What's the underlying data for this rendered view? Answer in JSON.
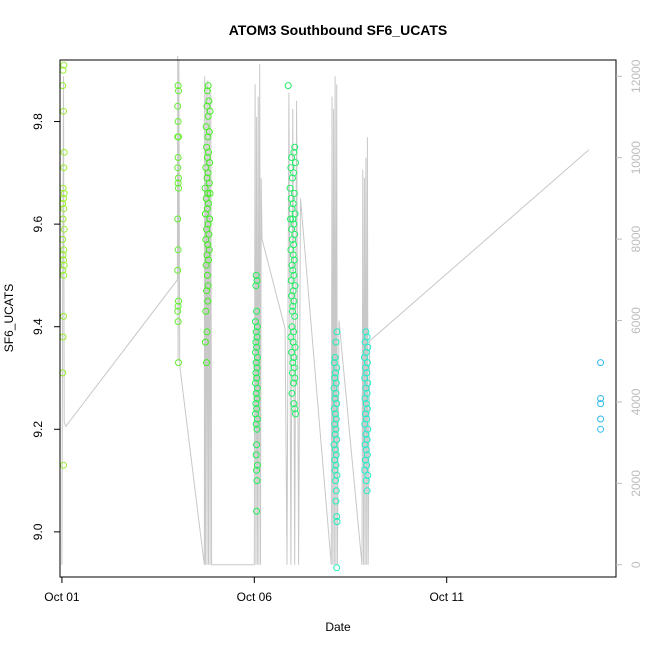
{
  "chart_data": {
    "type": "scatter",
    "title": "ATOM3 Southbound SF6_UCATS",
    "xlabel": "Date",
    "ylabel": "SF6_UCATS",
    "x_ticks": [
      "Oct 01",
      "Oct 06",
      "Oct 11"
    ],
    "x_tick_days": [
      1,
      6,
      11
    ],
    "y_ticks": [
      9.0,
      9.2,
      9.4,
      9.6,
      9.8
    ],
    "y2_ticks": [
      0,
      2000,
      4000,
      6000,
      8000,
      10000,
      12000
    ],
    "xlim": [
      0.95,
      15.4
    ],
    "ylim": [
      8.912,
      9.92
    ],
    "y2lim": [
      -300,
      12400
    ],
    "grid": false,
    "colors": {
      "axis": "#000000",
      "altitude_line": "#c8c8c8",
      "right_axis": "#bdbdbd"
    },
    "series": [
      {
        "color": "#99ee33",
        "points": [
          [
            1.05,
            9.91
          ],
          [
            1.03,
            9.9
          ],
          [
            1.02,
            9.87
          ],
          [
            1.04,
            9.82
          ],
          [
            1.06,
            9.74
          ],
          [
            1.05,
            9.71
          ],
          [
            1.03,
            9.67
          ],
          [
            1.06,
            9.66
          ],
          [
            1.04,
            9.65
          ],
          [
            1.02,
            9.64
          ],
          [
            1.05,
            9.63
          ],
          [
            1.03,
            9.61
          ],
          [
            1.06,
            9.59
          ],
          [
            1.02,
            9.57
          ],
          [
            1.05,
            9.55
          ],
          [
            1.03,
            9.54
          ],
          [
            1.04,
            9.53
          ],
          [
            1.06,
            9.52
          ],
          [
            1.02,
            9.51
          ],
          [
            1.05,
            9.5
          ],
          [
            1.04,
            9.42
          ],
          [
            1.03,
            9.38
          ],
          [
            1.02,
            9.31
          ],
          [
            1.04,
            9.13
          ]
        ]
      },
      {
        "color": "#66ee33",
        "points": [
          [
            4.02,
            9.87
          ],
          [
            4.03,
            9.86
          ],
          [
            4.01,
            9.83
          ],
          [
            4.02,
            9.8
          ],
          [
            4.01,
            9.77
          ],
          [
            4.03,
            9.77
          ],
          [
            4.02,
            9.73
          ],
          [
            4.01,
            9.71
          ],
          [
            4.03,
            9.69
          ],
          [
            4.02,
            9.68
          ],
          [
            4.03,
            9.67
          ],
          [
            4.01,
            9.61
          ],
          [
            4.02,
            9.55
          ],
          [
            4.01,
            9.51
          ],
          [
            4.03,
            9.45
          ],
          [
            4.02,
            9.44
          ],
          [
            4.01,
            9.43
          ],
          [
            4.02,
            9.41
          ],
          [
            4.03,
            9.33
          ]
        ]
      },
      {
        "color": "#44ee22",
        "points": [
          [
            4.8,
            9.87
          ],
          [
            4.78,
            9.86
          ],
          [
            4.82,
            9.84
          ],
          [
            4.77,
            9.83
          ],
          [
            4.85,
            9.82
          ],
          [
            4.8,
            9.81
          ],
          [
            4.75,
            9.79
          ],
          [
            4.83,
            9.78
          ],
          [
            4.79,
            9.77
          ],
          [
            4.76,
            9.75
          ],
          [
            4.81,
            9.74
          ],
          [
            4.78,
            9.73
          ],
          [
            4.84,
            9.72
          ],
          [
            4.74,
            9.71
          ],
          [
            4.8,
            9.7
          ],
          [
            4.77,
            9.69
          ],
          [
            4.83,
            9.68
          ],
          [
            4.72,
            9.67
          ],
          [
            4.79,
            9.66
          ],
          [
            4.85,
            9.66
          ],
          [
            4.75,
            9.65
          ],
          [
            4.81,
            9.64
          ],
          [
            4.78,
            9.63
          ],
          [
            4.73,
            9.62
          ],
          [
            4.84,
            9.61
          ],
          [
            4.8,
            9.6
          ],
          [
            4.76,
            9.59
          ],
          [
            4.82,
            9.58
          ],
          [
            4.74,
            9.57
          ],
          [
            4.79,
            9.56
          ],
          [
            4.83,
            9.55
          ],
          [
            4.77,
            9.54
          ],
          [
            4.81,
            9.53
          ],
          [
            4.75,
            9.52
          ],
          [
            4.78,
            9.5
          ],
          [
            4.8,
            9.48
          ],
          [
            4.76,
            9.47
          ],
          [
            4.79,
            9.45
          ],
          [
            4.74,
            9.43
          ],
          [
            4.77,
            9.39
          ],
          [
            4.73,
            9.37
          ],
          [
            4.76,
            9.33
          ]
        ]
      },
      {
        "color": "#22ee55",
        "points": [
          [
            6.05,
            9.5
          ],
          [
            6.07,
            9.49
          ],
          [
            6.04,
            9.48
          ],
          [
            6.06,
            9.43
          ],
          [
            6.03,
            9.41
          ],
          [
            6.08,
            9.4
          ],
          [
            6.05,
            9.39
          ],
          [
            6.07,
            9.38
          ],
          [
            6.04,
            9.37
          ],
          [
            6.06,
            9.36
          ],
          [
            6.03,
            9.35
          ],
          [
            6.08,
            9.34
          ],
          [
            6.05,
            9.33
          ],
          [
            6.07,
            9.32
          ],
          [
            6.04,
            9.31
          ],
          [
            6.06,
            9.3
          ],
          [
            6.03,
            9.29
          ],
          [
            6.08,
            9.28
          ],
          [
            6.05,
            9.27
          ],
          [
            6.07,
            9.26
          ],
          [
            6.04,
            9.25
          ],
          [
            6.06,
            9.24
          ],
          [
            6.03,
            9.23
          ],
          [
            6.08,
            9.22
          ],
          [
            6.05,
            9.21
          ],
          [
            6.07,
            9.2
          ],
          [
            6.06,
            9.17
          ],
          [
            6.05,
            9.15
          ],
          [
            6.08,
            9.13
          ],
          [
            6.06,
            9.12
          ],
          [
            6.07,
            9.1
          ],
          [
            6.06,
            9.04
          ]
        ]
      },
      {
        "color": "#22ee66",
        "points": [
          [
            6.88,
            9.87
          ],
          [
            7.05,
            9.75
          ],
          [
            7.03,
            9.74
          ],
          [
            6.97,
            9.73
          ],
          [
            7.07,
            9.72
          ],
          [
            6.95,
            9.71
          ],
          [
            7.02,
            9.7
          ],
          [
            6.99,
            9.69
          ],
          [
            6.93,
            9.67
          ],
          [
            7.04,
            9.66
          ],
          [
            6.96,
            9.65
          ],
          [
            7.01,
            9.64
          ],
          [
            6.98,
            9.63
          ],
          [
            7.06,
            9.62
          ],
          [
            6.94,
            9.61
          ],
          [
            7.0,
            9.61
          ],
          [
            7.03,
            9.6
          ],
          [
            6.97,
            9.59
          ],
          [
            7.05,
            9.58
          ],
          [
            6.99,
            9.57
          ],
          [
            7.02,
            9.56
          ],
          [
            6.95,
            9.55
          ],
          [
            7.01,
            9.54
          ],
          [
            7.04,
            9.53
          ],
          [
            6.98,
            9.52
          ],
          [
            7.0,
            9.51
          ],
          [
            7.03,
            9.5
          ],
          [
            6.96,
            9.49
          ],
          [
            7.06,
            9.48
          ],
          [
            7.01,
            9.47
          ],
          [
            6.97,
            9.46
          ],
          [
            7.03,
            9.45
          ],
          [
            7.0,
            9.44
          ],
          [
            6.99,
            9.43
          ],
          [
            7.05,
            9.42
          ],
          [
            6.98,
            9.4
          ],
          [
            7.02,
            9.39
          ],
          [
            6.95,
            9.38
          ],
          [
            7.01,
            9.37
          ],
          [
            7.06,
            9.36
          ],
          [
            6.97,
            9.35
          ],
          [
            7.03,
            9.34
          ],
          [
            7.0,
            9.33
          ],
          [
            7.04,
            9.32
          ],
          [
            6.99,
            9.31
          ],
          [
            7.05,
            9.3
          ],
          [
            7.02,
            9.29
          ],
          [
            6.98,
            9.27
          ],
          [
            7.03,
            9.25
          ],
          [
            7.05,
            9.24
          ],
          [
            7.07,
            9.23
          ]
        ]
      },
      {
        "color": "#22eebb",
        "points": [
          [
            8.15,
            9.39
          ],
          [
            8.12,
            9.37
          ],
          [
            8.1,
            9.34
          ],
          [
            8.08,
            9.33
          ],
          [
            8.14,
            9.32
          ],
          [
            8.11,
            9.31
          ],
          [
            8.09,
            9.3
          ],
          [
            8.13,
            9.29
          ],
          [
            8.07,
            9.28
          ],
          [
            8.12,
            9.27
          ],
          [
            8.1,
            9.26
          ],
          [
            8.14,
            9.25
          ],
          [
            8.08,
            9.24
          ],
          [
            8.11,
            9.23
          ],
          [
            8.13,
            9.22
          ],
          [
            8.09,
            9.21
          ],
          [
            8.12,
            9.2
          ],
          [
            8.1,
            9.19
          ],
          [
            8.14,
            9.18
          ],
          [
            8.07,
            9.17
          ],
          [
            8.11,
            9.16
          ],
          [
            8.13,
            9.15
          ],
          [
            8.09,
            9.14
          ],
          [
            8.12,
            9.13
          ],
          [
            8.1,
            9.12
          ],
          [
            8.15,
            9.11
          ],
          [
            8.11,
            9.1
          ],
          [
            8.13,
            9.08
          ],
          [
            8.12,
            9.06
          ],
          [
            8.14,
            9.03
          ],
          [
            8.15,
            9.02
          ],
          [
            8.14,
            8.93
          ]
        ]
      },
      {
        "color": "#22eecc",
        "points": [
          [
            8.9,
            9.39
          ],
          [
            8.93,
            9.38
          ],
          [
            8.88,
            9.37
          ],
          [
            8.95,
            9.36
          ],
          [
            8.91,
            9.35
          ],
          [
            8.86,
            9.34
          ],
          [
            8.94,
            9.33
          ],
          [
            8.89,
            9.32
          ],
          [
            8.92,
            9.31
          ],
          [
            8.87,
            9.3
          ],
          [
            8.95,
            9.29
          ],
          [
            8.9,
            9.28
          ],
          [
            8.93,
            9.27
          ],
          [
            8.88,
            9.26
          ],
          [
            8.91,
            9.25
          ],
          [
            8.94,
            9.24
          ],
          [
            8.89,
            9.23
          ],
          [
            8.92,
            9.22
          ],
          [
            8.87,
            9.21
          ],
          [
            8.95,
            9.2
          ],
          [
            8.9,
            9.19
          ],
          [
            8.93,
            9.18
          ],
          [
            8.88,
            9.17
          ],
          [
            8.91,
            9.16
          ],
          [
            8.94,
            9.15
          ],
          [
            8.89,
            9.14
          ],
          [
            8.92,
            9.13
          ],
          [
            8.87,
            9.12
          ],
          [
            8.95,
            9.11
          ],
          [
            8.91,
            9.1
          ],
          [
            8.93,
            9.08
          ]
        ]
      },
      {
        "color": "#33bbee",
        "points": [
          [
            15.0,
            9.33
          ],
          [
            15.0,
            9.26
          ],
          [
            15.0,
            9.25
          ],
          [
            15.0,
            9.22
          ],
          [
            15.0,
            9.2
          ]
        ]
      }
    ],
    "altitude_line": {
      "y_axis": "right",
      "points": [
        [
          1.0,
          0
        ],
        [
          1.02,
          7000
        ],
        [
          1.04,
          12000
        ],
        [
          1.06,
          3500
        ],
        [
          1.1,
          3400
        ],
        [
          4.0,
          7000
        ],
        [
          4.01,
          12500
        ],
        [
          4.02,
          5000
        ],
        [
          4.04,
          12400
        ],
        [
          4.06,
          4900
        ],
        [
          4.7,
          0
        ],
        [
          4.71,
          12000
        ],
        [
          4.73,
          0
        ],
        [
          4.75,
          11800
        ],
        [
          4.77,
          0
        ],
        [
          4.79,
          11900
        ],
        [
          4.81,
          0
        ],
        [
          4.83,
          11700
        ],
        [
          4.85,
          0
        ],
        [
          4.87,
          11600
        ],
        [
          4.89,
          0
        ],
        [
          6.0,
          0
        ],
        [
          6.02,
          11800
        ],
        [
          6.04,
          0
        ],
        [
          6.06,
          11000
        ],
        [
          6.08,
          0
        ],
        [
          6.1,
          11500
        ],
        [
          6.12,
          0
        ],
        [
          6.14,
          12300
        ],
        [
          6.16,
          0
        ],
        [
          6.18,
          9500
        ],
        [
          6.2,
          8000
        ],
        [
          6.8,
          5800
        ],
        [
          6.85,
          0
        ],
        [
          6.9,
          11600
        ],
        [
          6.95,
          0
        ],
        [
          7.0,
          11200
        ],
        [
          7.05,
          0
        ],
        [
          7.1,
          11400
        ],
        [
          7.15,
          0
        ],
        [
          7.2,
          9000
        ],
        [
          8.0,
          0
        ],
        [
          8.02,
          11500
        ],
        [
          8.04,
          0
        ],
        [
          8.06,
          11200
        ],
        [
          8.08,
          0
        ],
        [
          8.1,
          12000
        ],
        [
          8.12,
          0
        ],
        [
          8.14,
          11800
        ],
        [
          8.16,
          0
        ],
        [
          8.2,
          6000
        ],
        [
          8.8,
          0
        ],
        [
          8.82,
          9700
        ],
        [
          8.84,
          0
        ],
        [
          8.86,
          9500
        ],
        [
          8.88,
          0
        ],
        [
          8.9,
          10000
        ],
        [
          8.92,
          0
        ],
        [
          8.94,
          10500
        ],
        [
          8.96,
          0
        ],
        [
          9.0,
          5500
        ],
        [
          14.7,
          10200
        ]
      ]
    }
  }
}
